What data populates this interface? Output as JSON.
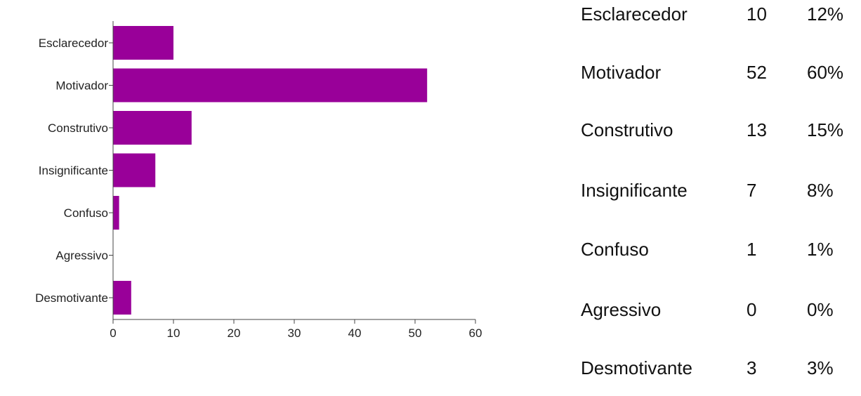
{
  "chart_data": {
    "type": "bar",
    "orientation": "horizontal",
    "categories": [
      "Esclarecedor",
      "Motivador",
      "Construtivo",
      "Insignificante",
      "Confuso",
      "Agressivo",
      "Desmotivante"
    ],
    "values": [
      10,
      52,
      13,
      7,
      1,
      0,
      3
    ],
    "xlim": [
      0,
      60
    ],
    "xticks": [
      "0",
      "10",
      "20",
      "30",
      "40",
      "50",
      "60"
    ],
    "bar_color": "#990099",
    "title": "",
    "xlabel": "",
    "ylabel": "",
    "grid": false
  },
  "summary": [
    {
      "label": "Esclarecedor",
      "count": "10",
      "percent": "12%"
    },
    {
      "label": "Motivador",
      "count": "52",
      "percent": "60%"
    },
    {
      "label": "Construtivo",
      "count": "13",
      "percent": "15%"
    },
    {
      "label": "Insignificante",
      "count": "7",
      "percent": "8%"
    },
    {
      "label": "Confuso",
      "count": "1",
      "percent": "1%"
    },
    {
      "label": "Agressivo",
      "count": "0",
      "percent": "0%"
    },
    {
      "label": "Desmotivante",
      "count": "3",
      "percent": "3%"
    }
  ]
}
